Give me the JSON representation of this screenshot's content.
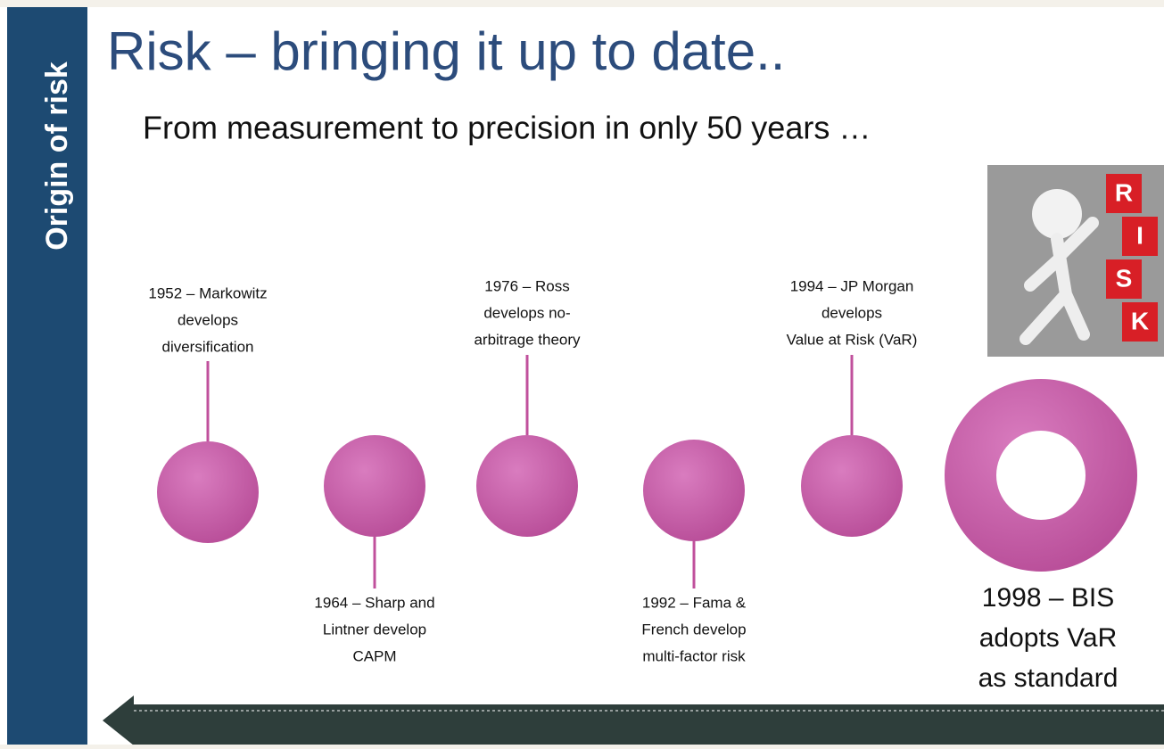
{
  "sidebar": {
    "label": "Origin of risk"
  },
  "header": {
    "title": "Risk – bringing it up to date..",
    "subtitle": "From measurement to precision in only 50 years …"
  },
  "image": {
    "letters": [
      "R",
      "I",
      "S",
      "K"
    ]
  },
  "events": [
    {
      "lines": [
        "1952 – Markowitz",
        "develops",
        "diversification"
      ]
    },
    {
      "lines": [
        "1964 – Sharp and",
        "Lintner develop",
        "CAPM"
      ]
    },
    {
      "lines": [
        "1976 – Ross",
        "develops no-",
        "arbitrage theory"
      ]
    },
    {
      "lines": [
        "1992 – Fama &",
        "French develop",
        "multi-factor risk"
      ]
    },
    {
      "lines": [
        "1994 – JP Morgan",
        "develops",
        "Value at Risk (VaR)"
      ]
    },
    {
      "lines": [
        "1998 – BIS",
        "adopts VaR",
        "as standard"
      ]
    }
  ]
}
